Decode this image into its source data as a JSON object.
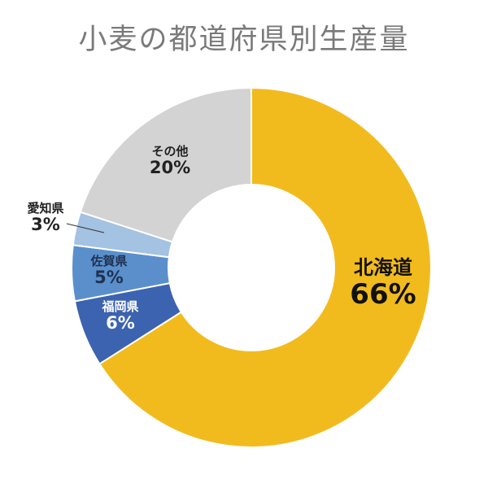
{
  "chart_data": {
    "type": "pie",
    "title": "小麦の都道府県別生産量",
    "unit": "%",
    "categories": [
      "北海道",
      "福岡県",
      "佐賀県",
      "愛知県",
      "その他"
    ],
    "values": [
      66,
      6,
      5,
      3,
      20
    ],
    "labels": [
      "66%",
      "6%",
      "5%",
      "3%",
      "20%"
    ],
    "colors": [
      "#F2BB1D",
      "#3C63B0",
      "#5A8FCC",
      "#A4C2E2",
      "#D4D3D3"
    ],
    "donut": true,
    "start_angle_deg": 0,
    "direction": "clockwise"
  }
}
